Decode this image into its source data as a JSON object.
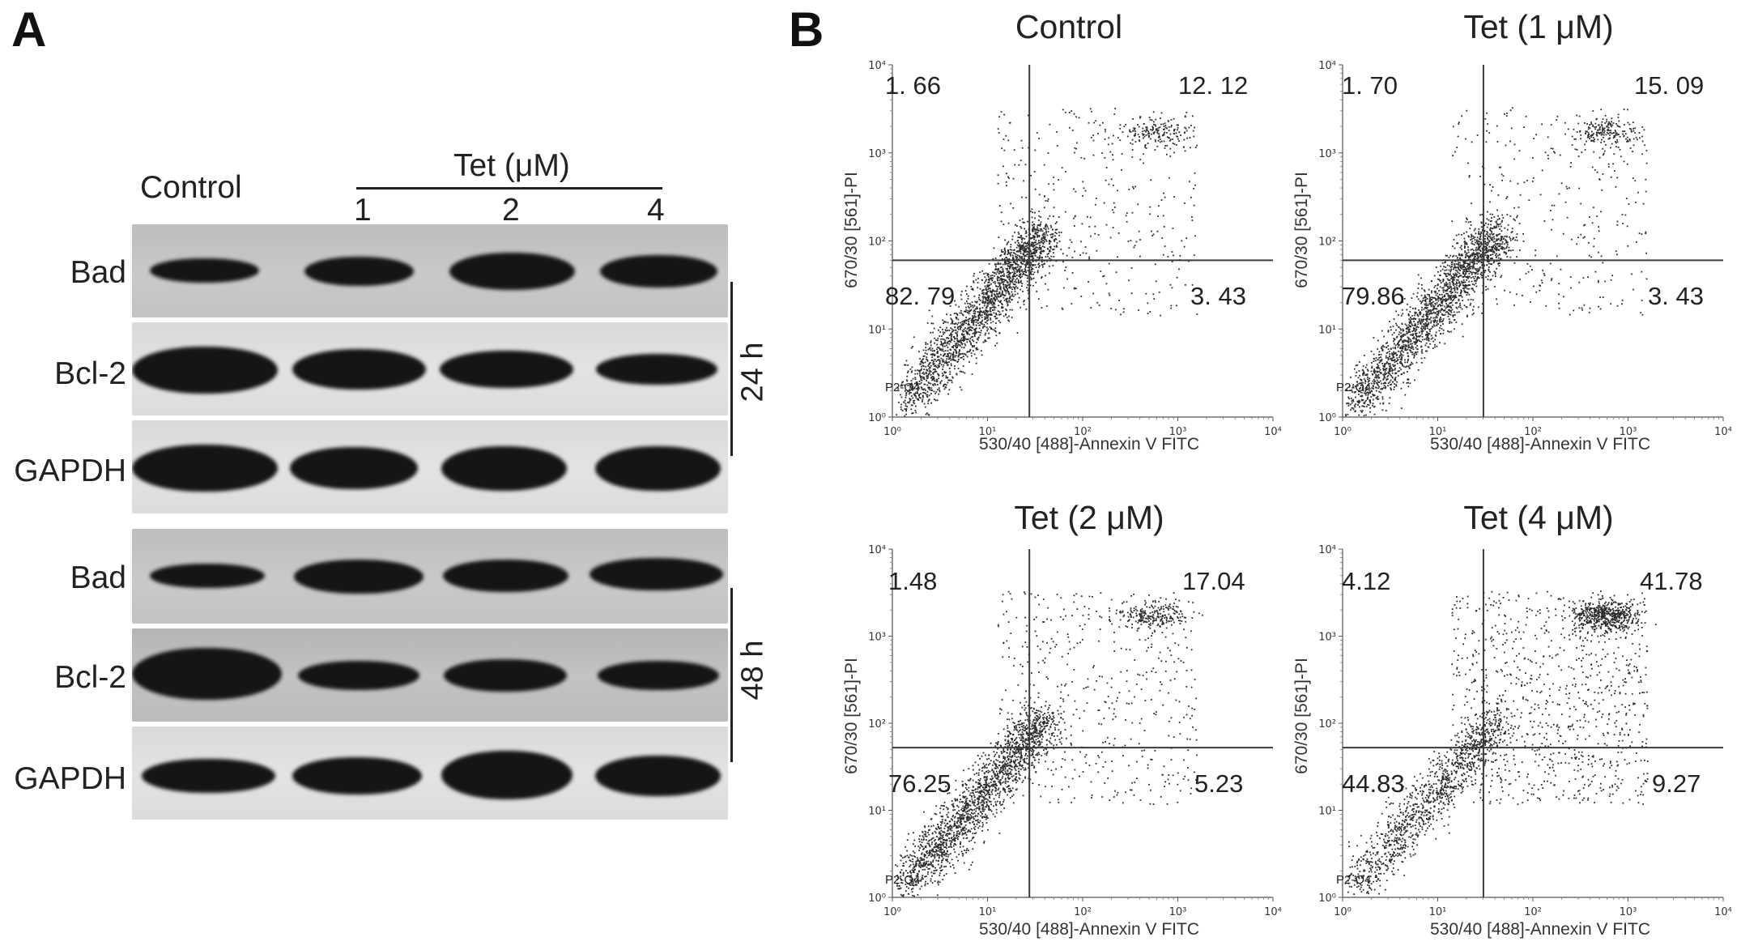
{
  "panel_a": {
    "letter": "A",
    "control_label": "Control",
    "tet_label": "Tet (μM)",
    "lanes": [
      "1",
      "2",
      "4"
    ],
    "rows": [
      {
        "label": "Bad"
      },
      {
        "label": "Bcl-2"
      },
      {
        "label": "GAPDH"
      },
      {
        "label": "Bad"
      },
      {
        "label": "Bcl-2"
      },
      {
        "label": "GAPDH"
      }
    ],
    "time_24": "24 h",
    "time_48": "48 h"
  },
  "panel_b": {
    "letter": "B",
    "x_axis_label": "530/40 [488]-Annexin V FITC",
    "y_axis_label": "670/30 [561]-PI",
    "gate_label": "P2-Q4",
    "plots": [
      {
        "title": "Control",
        "ul": "1. 66",
        "ur": "12. 12",
        "ll": "82. 79",
        "lr": "3. 43"
      },
      {
        "title": "Tet (1 μM)",
        "ul": "1. 70",
        "ur": "15. 09",
        "ll": "79.86",
        "lr": "3. 43"
      },
      {
        "title": "Tet (2 μM)",
        "ul": "1.48",
        "ur": "17.04",
        "ll": "76.25",
        "lr": "5.23"
      },
      {
        "title": "Tet (4 μM)",
        "ul": "4.12",
        "ur": "41.78",
        "ll": "44.83",
        "lr": "9.27"
      }
    ]
  }
}
